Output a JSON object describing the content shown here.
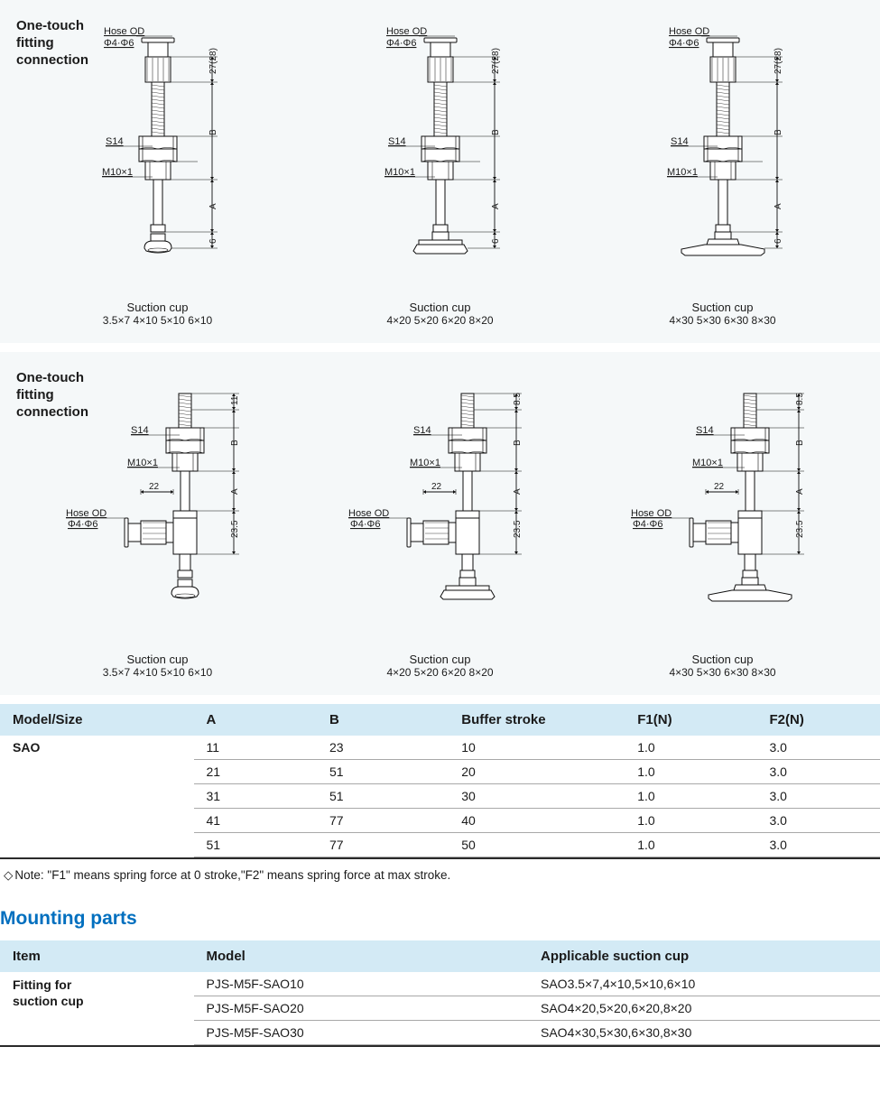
{
  "colors": {
    "panel_bg": "#f5f8f9",
    "header_bg": "#d3eaf5",
    "text": "#1a1a1a",
    "rule": "#a8a8a8",
    "rule_heavy": "#2a2a2a",
    "stroke": "#0e0e0e",
    "accent": "#006fbf"
  },
  "panels": {
    "title": "One-touch\nfitting\nconnection"
  },
  "diagram_labels": {
    "hose_od": "Hose OD",
    "hose_spec": "Φ4·Φ6",
    "s14": "S14",
    "m10": "M10×1",
    "dim_27": "27(28)",
    "dim_B": "B",
    "dim_A": "A",
    "dim_6": "6",
    "dim_11": "11",
    "dim_85": "8.5",
    "dim_22": "22",
    "dim_235": "23.5"
  },
  "diagrams_top": [
    {
      "caption": "Suction cup",
      "sizes": "3.5×7  4×10  5×10  6×10",
      "cup_w": 30,
      "cup_type": "narrow"
    },
    {
      "caption": "Suction cup",
      "sizes": "4×20  5×20  6×20  8×20",
      "cup_w": 60,
      "cup_type": "flat"
    },
    {
      "caption": "Suction cup",
      "sizes": "4×30  5×30  6×30  8×30",
      "cup_w": 92,
      "cup_type": "hat"
    }
  ],
  "diagrams_bottom": [
    {
      "caption": "Suction cup",
      "sizes": "3.5×7  4×10  5×10  6×10",
      "cup_w": 30,
      "cup_type": "narrow",
      "top_dim": "11"
    },
    {
      "caption": "Suction cup",
      "sizes": "4×20  5×20  6×20  8×20",
      "cup_w": 60,
      "cup_type": "flat",
      "top_dim": "8.5"
    },
    {
      "caption": "Suction cup",
      "sizes": "4×30  5×30  6×30  8×30",
      "cup_w": 92,
      "cup_type": "hat",
      "top_dim": "8.5"
    }
  ],
  "table1": {
    "columns": [
      "Model/Size",
      "A",
      "B",
      "Buffer stroke",
      "F1(N)",
      "F2(N)"
    ],
    "model": "SAO",
    "rows": [
      [
        "11",
        "23",
        "10",
        "1.0",
        "3.0"
      ],
      [
        "21",
        "51",
        "20",
        "1.0",
        "3.0"
      ],
      [
        "31",
        "51",
        "30",
        "1.0",
        "3.0"
      ],
      [
        "41",
        "77",
        "40",
        "1.0",
        "3.0"
      ],
      [
        "51",
        "77",
        "50",
        "1.0",
        "3.0"
      ]
    ]
  },
  "note": "Note: \"F1\" means spring force at 0 stroke,\"F2\" means spring force at max stroke.",
  "section_heading": "Mounting parts",
  "table2": {
    "columns": [
      "Item",
      "Model",
      "Applicable suction cup"
    ],
    "item": "Fitting for suction cup",
    "rows": [
      [
        "PJS-M5F-SAO10",
        "SAO3.5×7,4×10,5×10,6×10"
      ],
      [
        "PJS-M5F-SAO20",
        "SAO4×20,5×20,6×20,8×20"
      ],
      [
        "PJS-M5F-SAO30",
        "SAO4×30,5×30,6×30,8×30"
      ]
    ]
  }
}
